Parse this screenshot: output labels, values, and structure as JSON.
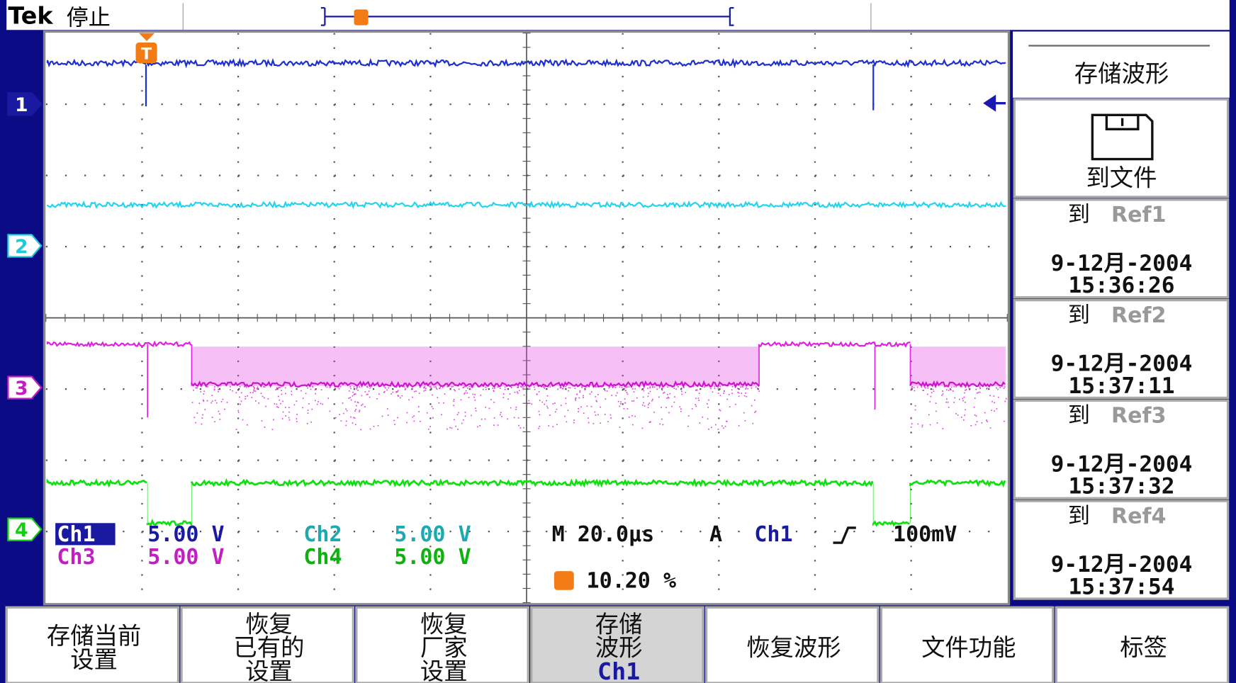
{
  "header": {
    "brand": "Tek",
    "status": "停止"
  },
  "trigger_marker": "T",
  "channel_markers": [
    "1",
    "2",
    "3",
    "4"
  ],
  "readout": {
    "channels": [
      {
        "label": "Ch1",
        "scale": "5.00 V"
      },
      {
        "label": "Ch2",
        "scale": "5.00 V"
      },
      {
        "label": "Ch3",
        "scale": "5.00 V"
      },
      {
        "label": "Ch4",
        "scale": "5.00 V"
      }
    ],
    "timebase": "M 20.0µs",
    "trigger_mode": "A",
    "trigger_source": "Ch1",
    "trigger_level": "100mV",
    "trigger_position": "10.20 %"
  },
  "side_menu": {
    "title": "存储波形",
    "items": [
      {
        "action": "到文件"
      },
      {
        "action": "到",
        "target": "Ref1",
        "date": "9-12月-2004",
        "time": "15:36:26"
      },
      {
        "action": "到",
        "target": "Ref2",
        "date": "9-12月-2004",
        "time": "15:37:11"
      },
      {
        "action": "到",
        "target": "Ref3",
        "date": "9-12月-2004",
        "time": "15:37:32"
      },
      {
        "action": "到",
        "target": "Ref4",
        "date": "9-12月-2004",
        "time": "15:37:54"
      }
    ]
  },
  "bottom_menu": [
    {
      "lines": [
        "存储当前",
        "设置"
      ]
    },
    {
      "lines": [
        "恢复",
        "已有的",
        "设置"
      ]
    },
    {
      "lines": [
        "恢复",
        "厂家",
        "设置"
      ]
    },
    {
      "lines": [
        "存储",
        "波形",
        "Ch1"
      ],
      "selected": true
    },
    {
      "lines": [
        "恢复波形"
      ]
    },
    {
      "lines": [
        "文件功能"
      ]
    },
    {
      "lines": [
        "标签"
      ]
    }
  ]
}
